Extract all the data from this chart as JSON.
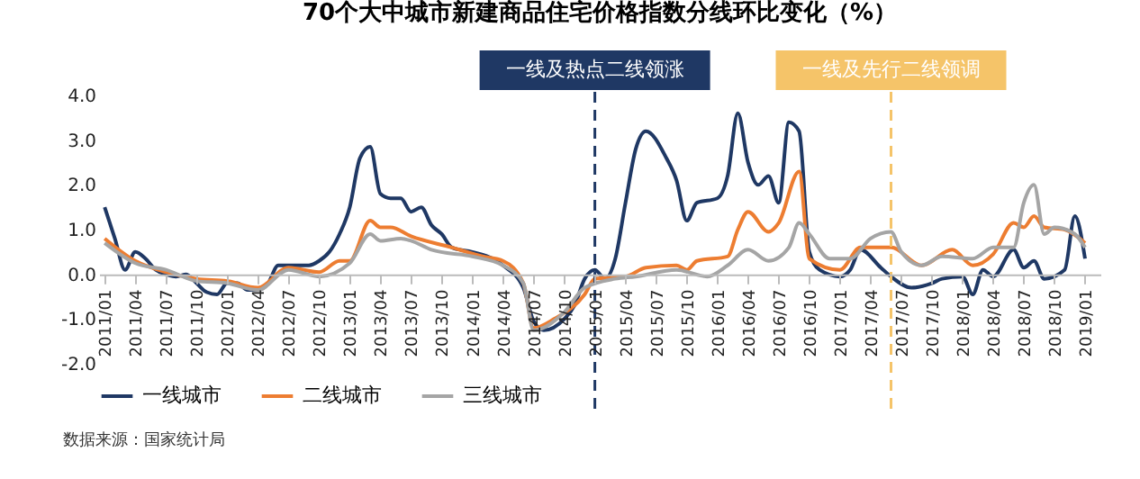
{
  "chart_data": {
    "type": "line",
    "title": "70个大中城市新建商品住宅价格指数分线环比变化（%）",
    "xlim": [
      "2010-12-15",
      "2019-02-15"
    ],
    "xticks": [
      {
        "value": "2011-01",
        "label": "2011/01"
      },
      {
        "value": "2011-04",
        "label": "2011/04"
      },
      {
        "value": "2011-07",
        "label": "2011/07"
      },
      {
        "value": "2011-10",
        "label": "2011/10"
      },
      {
        "value": "2012-01",
        "label": "2012/01"
      },
      {
        "value": "2012-04",
        "label": "2012/04"
      },
      {
        "value": "2012-07",
        "label": "2012/07"
      },
      {
        "value": "2012-10",
        "label": "2012/10"
      },
      {
        "value": "2013-01",
        "label": "2013/01"
      },
      {
        "value": "2013-04",
        "label": "2013/04"
      },
      {
        "value": "2013-07",
        "label": "2013/07"
      },
      {
        "value": "2013-10",
        "label": "2013/10"
      },
      {
        "value": "2014-01",
        "label": "2014/01"
      },
      {
        "value": "2014-04",
        "label": "2014/04"
      },
      {
        "value": "2014-07",
        "label": "2014/07"
      },
      {
        "value": "2014-10",
        "label": "2014/10"
      },
      {
        "value": "2015-01",
        "label": "2015/01"
      },
      {
        "value": "2015-04",
        "label": "2015/04"
      },
      {
        "value": "2015-07",
        "label": "2015/07"
      },
      {
        "value": "2015-10",
        "label": "2015/10"
      },
      {
        "value": "2016-01",
        "label": "2016/01"
      },
      {
        "value": "2016-04",
        "label": "2016/04"
      },
      {
        "value": "2016-07",
        "label": "2016/07"
      },
      {
        "value": "2016-10",
        "label": "2016/10"
      },
      {
        "value": "2017-01",
        "label": "2017/01"
      },
      {
        "value": "2017-04",
        "label": "2017/04"
      },
      {
        "value": "2017-07",
        "label": "2017/07"
      },
      {
        "value": "2017-10",
        "label": "2017/10"
      },
      {
        "value": "2018-01",
        "label": "2018/01"
      },
      {
        "value": "2018-04",
        "label": "2018/04"
      },
      {
        "value": "2018-07",
        "label": "2018/07"
      },
      {
        "value": "2018-10",
        "label": "2018/10"
      },
      {
        "value": "2019-01",
        "label": "2019/01"
      }
    ],
    "ylim": [
      -2,
      4
    ],
    "yticks": [
      {
        "value": -2,
        "label": "-2.0"
      },
      {
        "value": -1,
        "label": "-1.0"
      },
      {
        "value": 0,
        "label": "0.0"
      },
      {
        "value": 1,
        "label": "1.0"
      },
      {
        "value": 2,
        "label": "2.0"
      },
      {
        "value": 3,
        "label": "3.0"
      },
      {
        "value": 4,
        "label": "4.0"
      }
    ],
    "grid": false,
    "legend": "bottom",
    "marker": "none",
    "line_style": "solid",
    "series": [
      {
        "name": "一线城市",
        "color": "#1f3864",
        "x": [
          "2011-01",
          "2011-02",
          "2011-03",
          "2011-04",
          "2011-05",
          "2011-06",
          "2011-07",
          "2011-08",
          "2011-09",
          "2011-10",
          "2011-11",
          "2011-12",
          "2012-01",
          "2012-02",
          "2012-03",
          "2012-04",
          "2012-05",
          "2012-06",
          "2012-07",
          "2012-08",
          "2012-09",
          "2012-10",
          "2012-11",
          "2012-12",
          "2013-01",
          "2013-02",
          "2013-03",
          "2013-04",
          "2013-05",
          "2013-06",
          "2013-07",
          "2013-08",
          "2013-09",
          "2013-10",
          "2013-11",
          "2014-01",
          "2014-03",
          "2014-04",
          "2014-06",
          "2014-07",
          "2014-08",
          "2014-10",
          "2014-11",
          "2014-12",
          "2015-01",
          "2015-02",
          "2015-03",
          "2015-04",
          "2015-05",
          "2015-06",
          "2015-08",
          "2015-09",
          "2015-10",
          "2015-11",
          "2016-01",
          "2016-02",
          "2016-03",
          "2016-04",
          "2016-05",
          "2016-06",
          "2016-07",
          "2016-08",
          "2016-09",
          "2016-10",
          "2016-11",
          "2017-01",
          "2017-02",
          "2017-03",
          "2017-05",
          "2017-06",
          "2017-08",
          "2017-10",
          "2017-11",
          "2018-01",
          "2018-02",
          "2018-03",
          "2018-04",
          "2018-06",
          "2018-07",
          "2018-08",
          "2018-09",
          "2018-11",
          "2018-12",
          "2019-01"
        ],
        "values": [
          1.5,
          0.8,
          0.1,
          0.5,
          0.35,
          0.1,
          0.0,
          -0.05,
          0.0,
          -0.2,
          -0.4,
          -0.45,
          -0.2,
          -0.2,
          -0.35,
          -0.35,
          -0.2,
          0.2,
          0.2,
          0.2,
          0.2,
          0.3,
          0.5,
          0.9,
          1.5,
          2.6,
          2.85,
          1.8,
          1.7,
          1.7,
          1.4,
          1.5,
          1.1,
          0.9,
          0.6,
          0.5,
          0.35,
          0.2,
          -0.3,
          -1.05,
          -1.25,
          -1.0,
          -0.7,
          -0.1,
          0.1,
          -0.1,
          0.35,
          1.6,
          2.8,
          3.2,
          2.6,
          2.1,
          1.2,
          1.6,
          1.7,
          2.2,
          3.6,
          2.5,
          2.0,
          2.2,
          1.6,
          3.4,
          3.2,
          0.5,
          0.1,
          -0.05,
          0.1,
          0.55,
          0.15,
          -0.05,
          -0.3,
          -0.2,
          -0.1,
          -0.05,
          -0.45,
          0.1,
          -0.05,
          0.55,
          0.15,
          0.3,
          -0.1,
          0.1,
          1.3,
          0.35
        ]
      },
      {
        "name": "二线城市",
        "color": "#ed7d31",
        "x": [
          "2011-01",
          "2011-04",
          "2011-07",
          "2011-10",
          "2012-01",
          "2012-04",
          "2012-07",
          "2012-10",
          "2012-12",
          "2013-01",
          "2013-03",
          "2013-04",
          "2013-05",
          "2013-07",
          "2013-11",
          "2014-02",
          "2014-04",
          "2014-06",
          "2014-07",
          "2014-09",
          "2014-12",
          "2015-01",
          "2015-04",
          "2015-06",
          "2015-09",
          "2015-10",
          "2015-11",
          "2016-02",
          "2016-03",
          "2016-04",
          "2016-06",
          "2016-07",
          "2016-09",
          "2016-10",
          "2017-01",
          "2017-03",
          "2017-06",
          "2017-09",
          "2017-12",
          "2018-02",
          "2018-04",
          "2018-06",
          "2018-07",
          "2018-08",
          "2018-09",
          "2018-11",
          "2019-01"
        ],
        "values": [
          0.8,
          0.3,
          0.05,
          -0.1,
          -0.15,
          -0.3,
          0.15,
          0.05,
          0.3,
          0.3,
          1.2,
          1.05,
          1.05,
          0.85,
          0.6,
          0.4,
          0.3,
          -0.2,
          -1.2,
          -1.0,
          -0.45,
          -0.1,
          -0.05,
          0.15,
          0.2,
          0.1,
          0.3,
          0.4,
          1.0,
          1.4,
          0.95,
          1.15,
          2.3,
          0.35,
          0.1,
          0.6,
          0.6,
          0.2,
          0.55,
          0.2,
          0.45,
          1.15,
          1.05,
          1.3,
          1.05,
          1.0,
          0.7
        ]
      },
      {
        "name": "三线城市",
        "color": "#a5a5a5",
        "x": [
          "2011-01",
          "2011-04",
          "2011-07",
          "2011-10",
          "2012-01",
          "2012-04",
          "2012-07",
          "2012-10",
          "2013-01",
          "2013-03",
          "2013-04",
          "2013-06",
          "2013-07",
          "2013-09",
          "2014-01",
          "2014-04",
          "2014-06",
          "2014-07",
          "2014-10",
          "2014-12",
          "2015-03",
          "2015-05",
          "2015-09",
          "2015-12",
          "2016-02",
          "2016-04",
          "2016-06",
          "2016-08",
          "2016-09",
          "2016-10",
          "2016-12",
          "2017-02",
          "2017-04",
          "2017-06",
          "2017-07",
          "2017-09",
          "2017-11",
          "2018-02",
          "2018-04",
          "2018-06",
          "2018-07",
          "2018-08",
          "2018-09",
          "2018-10",
          "2018-12",
          "2019-01"
        ],
        "values": [
          0.7,
          0.25,
          0.1,
          -0.15,
          -0.2,
          -0.35,
          0.1,
          -0.05,
          0.25,
          0.9,
          0.75,
          0.8,
          0.75,
          0.55,
          0.4,
          0.2,
          -0.2,
          -1.25,
          -0.85,
          -0.3,
          -0.1,
          -0.05,
          0.1,
          -0.05,
          0.2,
          0.55,
          0.3,
          0.6,
          1.15,
          0.9,
          0.35,
          0.35,
          0.8,
          0.95,
          0.5,
          0.2,
          0.4,
          0.35,
          0.6,
          0.6,
          1.6,
          2.0,
          0.9,
          1.05,
          0.9,
          0.6
        ]
      }
    ],
    "ref_lines": [
      {
        "axis": "x",
        "value": "2015-01",
        "label": "一线及热点二线领涨",
        "color": "#1f3864",
        "line_style": "dashed"
      },
      {
        "axis": "x",
        "value": "2017-06",
        "label": "一线及先行二线领调",
        "color": "#f5c469",
        "line_style": "dashed"
      }
    ],
    "annotations": [
      "数据来源：国家统计局"
    ]
  }
}
